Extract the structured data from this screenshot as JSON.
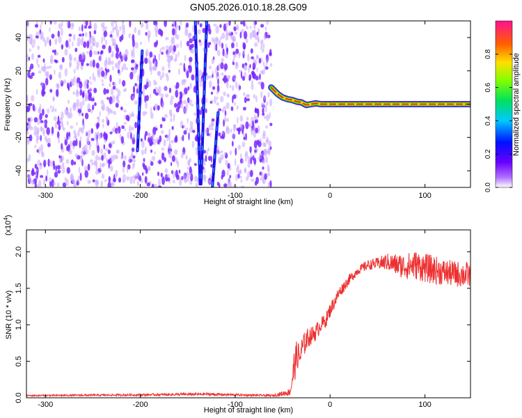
{
  "title": "GN05.2026.010.18.28.G09",
  "chart_data": [
    {
      "type": "heatmap",
      "xlabel": "Height of straight line (km)",
      "ylabel": "Frequency (Hz)",
      "xlim": [
        -320,
        148
      ],
      "ylim": [
        -50,
        50
      ],
      "x_ticks": [
        -300,
        -200,
        -100,
        0,
        100
      ],
      "x_tick_labels": [
        "-300",
        "-200",
        "-100",
        "0",
        "100"
      ],
      "y_ticks": [
        -40,
        -20,
        0,
        20,
        40
      ],
      "y_tick_labels": [
        "-40",
        "-20",
        "0",
        "20",
        "40"
      ],
      "noise_x_range": [
        -320,
        -62
      ],
      "streaks": [
        {
          "x_top": -142,
          "x_bottom": -137,
          "y_top": 50,
          "y_bottom": -48
        },
        {
          "x_top": -130,
          "x_bottom": -136,
          "y_top": 50,
          "y_bottom": -48
        },
        {
          "x_top": -198,
          "x_bottom": -203,
          "y_top": 32,
          "y_bottom": -28
        },
        {
          "x_top": -118,
          "x_bottom": -124,
          "y_top": -5,
          "y_bottom": -50
        }
      ],
      "signal_trace": {
        "x": [
          -62,
          -55,
          -50,
          -45,
          -40,
          -35,
          -30,
          -25,
          -20,
          -15,
          -10,
          0,
          20,
          40,
          60,
          80,
          100,
          120,
          148
        ],
        "y": [
          10,
          6,
          4,
          3,
          2.5,
          1.5,
          1,
          -0.5,
          0,
          0.5,
          0,
          0,
          0,
          0,
          0,
          0,
          0,
          0,
          0
        ]
      },
      "colorbar": {
        "label": "Normalized spectral amplitude",
        "range": [
          0,
          1
        ],
        "ticks": [
          0.0,
          0.2,
          0.4,
          0.6,
          0.8
        ],
        "tick_labels": [
          "0.0",
          "0.2",
          "0.4",
          "0.6",
          "0.8"
        ]
      },
      "colors": {
        "noise": "#7a28ff",
        "noise_light": "#c9a6ff",
        "signal_core": "#ff2a1a",
        "signal_edge": "#2ad800"
      },
      "grid": false
    },
    {
      "type": "line",
      "xlabel": "Height of straight line (km)",
      "ylabel": "SNR (10 * v/v)",
      "y_multiplier": "(x10",
      "y_multiplier_exp": "4",
      "y_multiplier_close": ")",
      "xlim": [
        -320,
        148
      ],
      "ylim": [
        0,
        2.3
      ],
      "x_ticks": [
        -300,
        -200,
        -100,
        0,
        100
      ],
      "x_tick_labels": [
        "-300",
        "-200",
        "-100",
        "0",
        "100"
      ],
      "y_ticks": [
        0.0,
        0.5,
        1.0,
        1.5,
        2.0
      ],
      "y_tick_labels": [
        "0.0",
        "0.5",
        "1.0",
        "1.5",
        "2.0"
      ],
      "series": [
        {
          "color": "#ee3030",
          "x": [
            -320,
            -200,
            -130,
            -100,
            -60,
            -42,
            -38,
            -35,
            -32,
            -30,
            -25,
            -20,
            -15,
            -10,
            -5,
            0,
            10,
            20,
            30,
            40,
            50,
            60,
            70,
            80,
            90,
            100,
            110,
            120,
            130,
            148
          ],
          "y": [
            0.03,
            0.04,
            0.05,
            0.04,
            0.03,
            0.08,
            0.4,
            0.6,
            0.55,
            0.65,
            0.8,
            0.85,
            0.9,
            1.0,
            1.05,
            1.2,
            1.45,
            1.62,
            1.75,
            1.82,
            1.84,
            1.86,
            1.82,
            1.8,
            1.82,
            1.78,
            1.75,
            1.72,
            1.7,
            1.68
          ],
          "noise_amplitude": [
            0.01,
            0.015,
            0.02,
            0.015,
            0.015,
            0.05,
            0.25,
            0.2,
            0.18,
            0.18,
            0.15,
            0.12,
            0.12,
            0.1,
            0.1,
            0.1,
            0.08,
            0.07,
            0.06,
            0.07,
            0.08,
            0.12,
            0.15,
            0.18,
            0.2,
            0.2,
            0.2,
            0.18,
            0.18,
            0.18
          ]
        }
      ],
      "grid": false
    }
  ]
}
